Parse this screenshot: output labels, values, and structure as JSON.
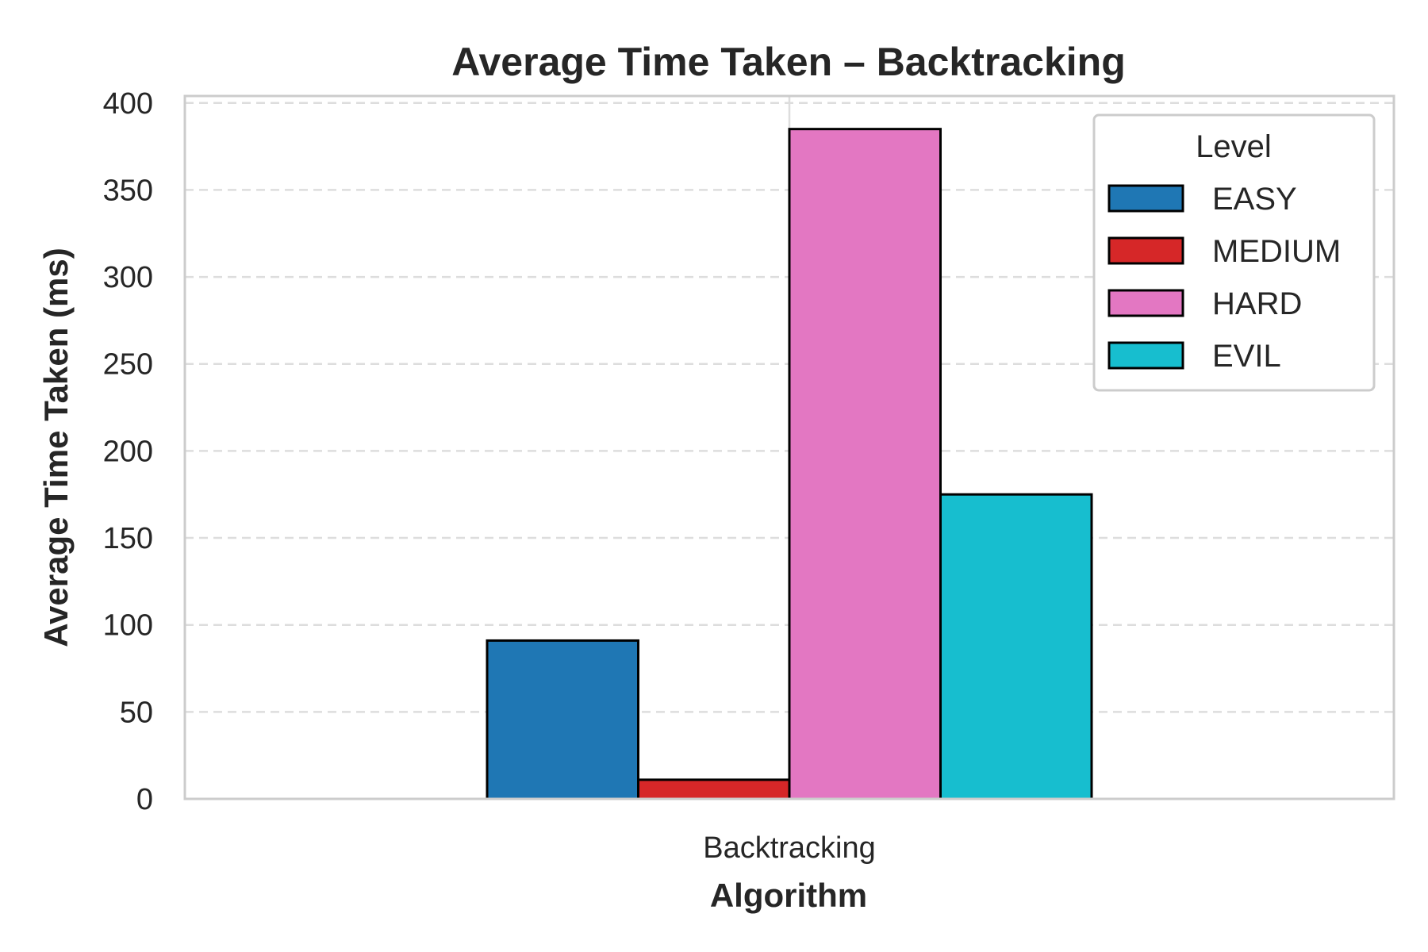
{
  "chart_data": {
    "type": "bar",
    "title": "Average Time Taken – Backtracking",
    "xlabel": "Algorithm",
    "ylabel": "Average Time Taken (ms)",
    "categories": [
      "Backtracking"
    ],
    "series": [
      {
        "name": "EASY",
        "values": [
          91
        ],
        "color": "#1f77b4"
      },
      {
        "name": "MEDIUM",
        "values": [
          11
        ],
        "color": "#d62728"
      },
      {
        "name": "HARD",
        "values": [
          385
        ],
        "color": "#e377c2"
      },
      {
        "name": "EVIL",
        "values": [
          175
        ],
        "color": "#17becf"
      }
    ],
    "ylim": [
      0,
      404
    ],
    "yticks": [
      0,
      50,
      100,
      150,
      200,
      250,
      300,
      350,
      400
    ],
    "grid": "y dashed",
    "legend": {
      "title": "Level",
      "placement": "top-right"
    }
  }
}
